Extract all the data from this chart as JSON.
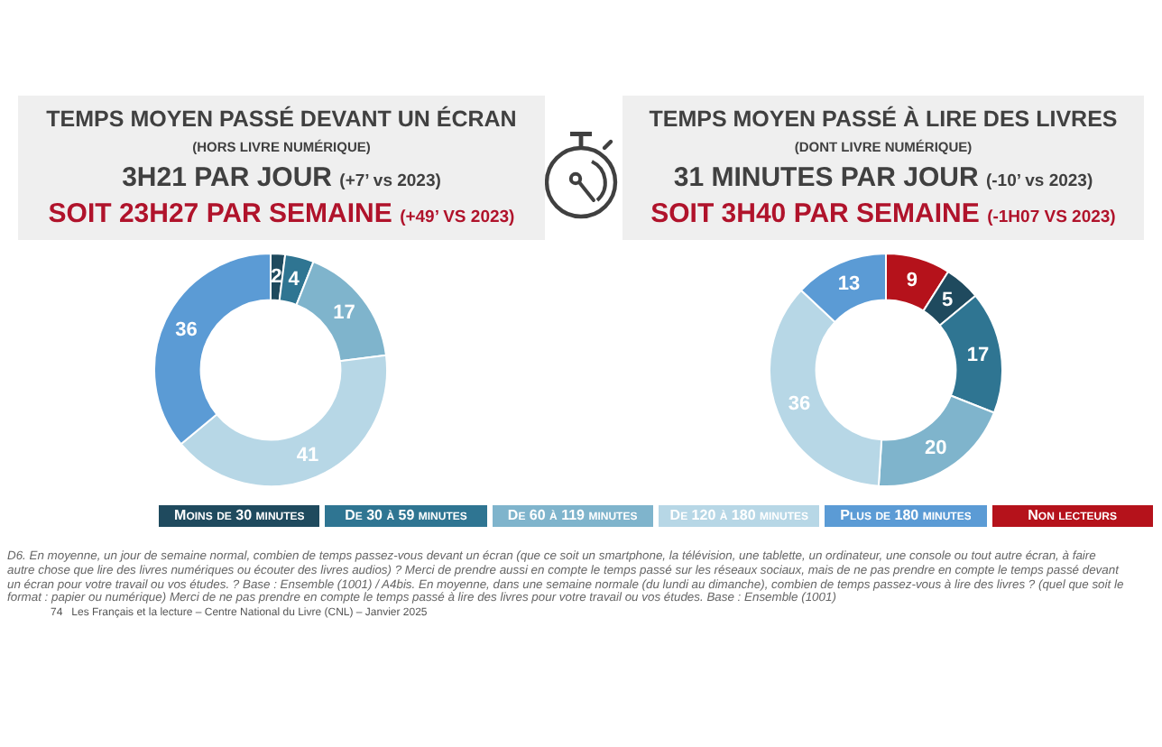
{
  "chart_data": [
    {
      "type": "donut",
      "title": "TEMPS MOYEN PASSÉ DEVANT UN ÉCRAN",
      "subtitle": "(HORS LIVRE NUMÉRIQUE)",
      "annotations": [
        "3H21 PAR JOUR (+7’ vs 2023)",
        "SOIT 23H27 PAR SEMAINE (+49’ VS 2023)"
      ],
      "categories": [
        "Moins de 30 minutes",
        "De 30 à 59 minutes",
        "De 60 à 119 minutes",
        "De 120 à 180 minutes",
        "Plus de 180 minutes"
      ],
      "values": [
        2,
        4,
        17,
        41,
        36
      ],
      "colors": [
        "#1f4a5e",
        "#2f7592",
        "#7fb4cc",
        "#b7d7e6",
        "#5b9bd5"
      ],
      "data_labels": true,
      "legend": "bottom"
    },
    {
      "type": "donut",
      "title": "TEMPS MOYEN PASSÉ À LIRE DES LIVRES",
      "subtitle": "(DONT LIVRE NUMÉRIQUE)",
      "annotations": [
        "31 MINUTES PAR JOUR (-10’ vs 2023)",
        "SOIT 3H40 PAR SEMAINE (-1H07 VS 2023)"
      ],
      "categories": [
        "Non lecteurs",
        null,
        null,
        null,
        null,
        null
      ],
      "values": [
        9,
        5,
        17,
        20,
        36,
        13
      ],
      "colors": [
        "#b5121b",
        "#1f4a5e",
        "#2f7592",
        "#7fb4cc",
        "#b7d7e6",
        "#5b9bd5"
      ],
      "data_labels": true,
      "legend": "bottom"
    },
    {
      "type": "other",
      "annotations": [
        "D6. En moyenne, un jour de semaine normal, combien de temps passez-vous devant un écran (que ce soit un smartphone, la télévision, une tablette, un ordinateur, une console ou tout autre écran, à faire autre chose que lire des livres numériques ou écouter des livres audios) ? Merci de prendre aussi en compte le temps passé sur les réseaux sociaux, mais de ne pas prendre en compte le temps passé devant un écran pour votre travail ou vos études. ? Base : Ensemble (1001) / A4bis. En moyenne, dans une semaine normale (du lundi au dimanche), combien de temps passez-vous à lire des livres ? (quel que soit le format : papier ou numérique) Merci de ne pas prendre en compte le temps passé à lire des livres pour votre travail ou vos études. Base : Ensemble (1001)",
        "74   Les Français et la lecture – Centre National du Livre (CNL) – Janvier 2025"
      ]
    }
  ]
}
